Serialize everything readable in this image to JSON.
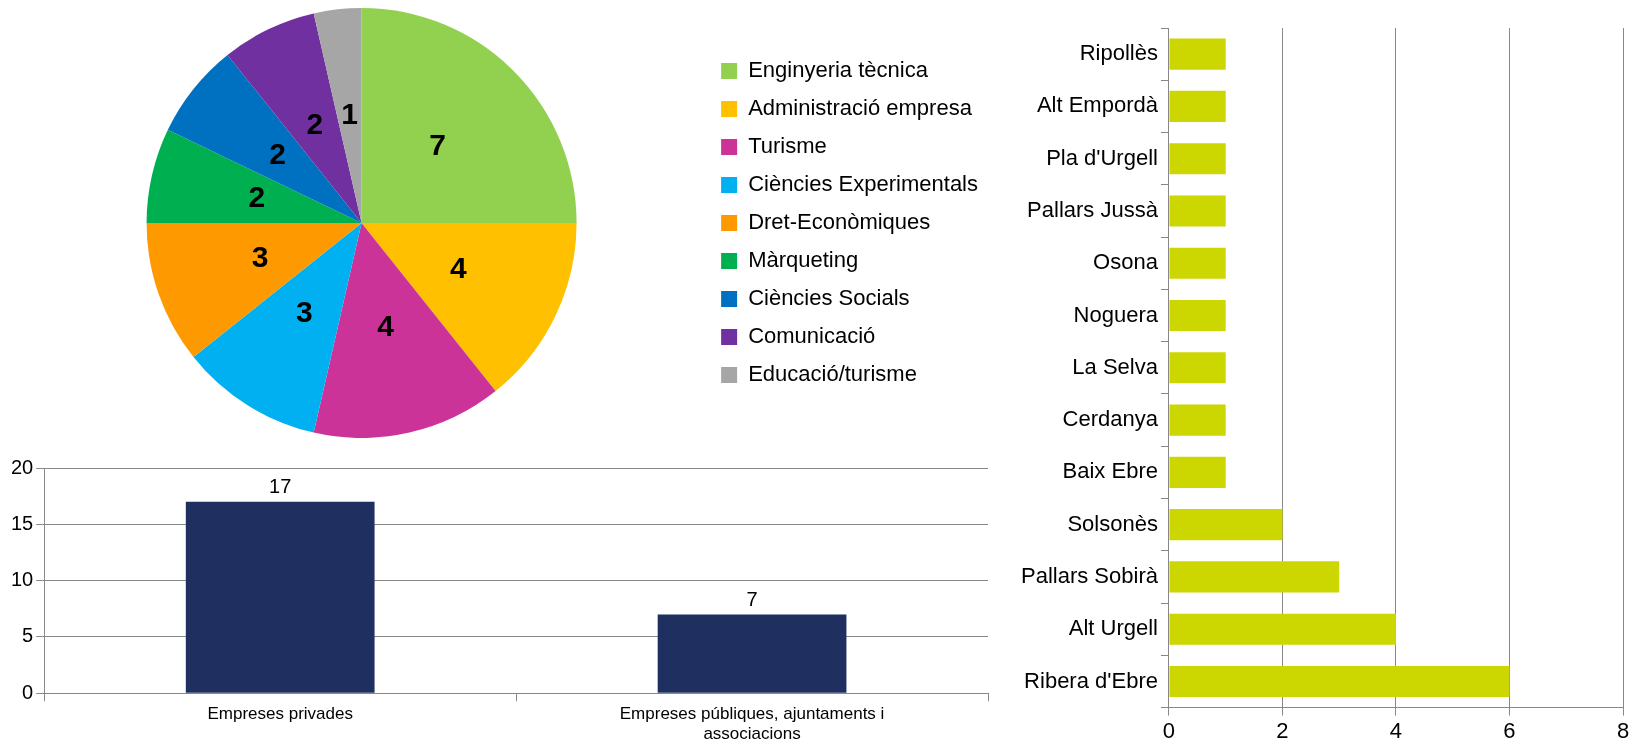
{
  "chart_data": [
    {
      "type": "pie",
      "categories": [
        "Enginyeria tècnica",
        "Administració empresa",
        "Turisme",
        "Ciències Experimentals",
        "Dret-Econòmiques",
        "Màrqueting",
        "Ciències Socials",
        "Comunicació",
        "Educació/turisme"
      ],
      "values": [
        7,
        4,
        4,
        3,
        3,
        2,
        2,
        2,
        1
      ],
      "colors": [
        "#92d050",
        "#ffc000",
        "#cc3399",
        "#00b0f0",
        "#ff9900",
        "#00b050",
        "#0070c0",
        "#7030a0",
        "#a6a6a6"
      ],
      "data_labels": true,
      "legend": "right"
    },
    {
      "type": "bar",
      "categories": [
        "Empreses privades",
        "Empreses públiques, ajuntaments i associacions"
      ],
      "values": [
        17,
        7
      ],
      "color": "#1f3060",
      "ylim": [
        0,
        20
      ],
      "yticks": [
        0,
        5,
        10,
        15,
        20
      ],
      "grid": "y",
      "data_labels": true
    },
    {
      "type": "bar",
      "orientation": "horizontal",
      "categories": [
        "Ripollès",
        "Alt Empordà",
        "Pla d'Urgell",
        "Pallars Jussà",
        "Osona",
        "Noguera",
        "La Selva",
        "Cerdanya",
        "Baix Ebre",
        "Solsonès",
        "Pallars Sobirà",
        "Alt Urgell",
        "Ribera d'Ebre"
      ],
      "values": [
        1,
        1,
        1,
        1,
        1,
        1,
        1,
        1,
        1,
        2,
        3,
        4,
        6
      ],
      "color": "#ccd600",
      "xlim": [
        0,
        8
      ],
      "xticks": [
        0,
        2,
        4,
        6,
        8
      ],
      "grid": "x"
    }
  ]
}
